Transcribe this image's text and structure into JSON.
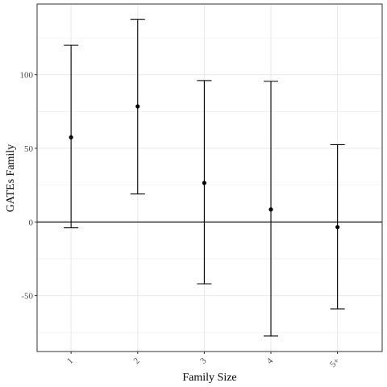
{
  "chart_data": {
    "type": "errorbar",
    "title": "",
    "xlabel": "Family Size",
    "ylabel": "GATEs Family",
    "categories": [
      "1",
      "2",
      "3",
      "4",
      "5+"
    ],
    "series": [
      {
        "estimate": [
          57.5,
          78.5,
          26.5,
          8.5,
          -3.5
        ],
        "lower": [
          -4.0,
          19.0,
          -42.0,
          -77.5,
          -59.0
        ],
        "upper": [
          120.0,
          137.5,
          96.0,
          95.5,
          52.5
        ]
      }
    ],
    "yticks": [
      -50,
      0,
      50,
      100
    ],
    "ylim": [
      -88,
      148
    ],
    "reference_line": 0,
    "grid": true,
    "colors": {
      "marks": "#000000",
      "grid": "#ebebeb",
      "panel_border": "#333333"
    }
  }
}
